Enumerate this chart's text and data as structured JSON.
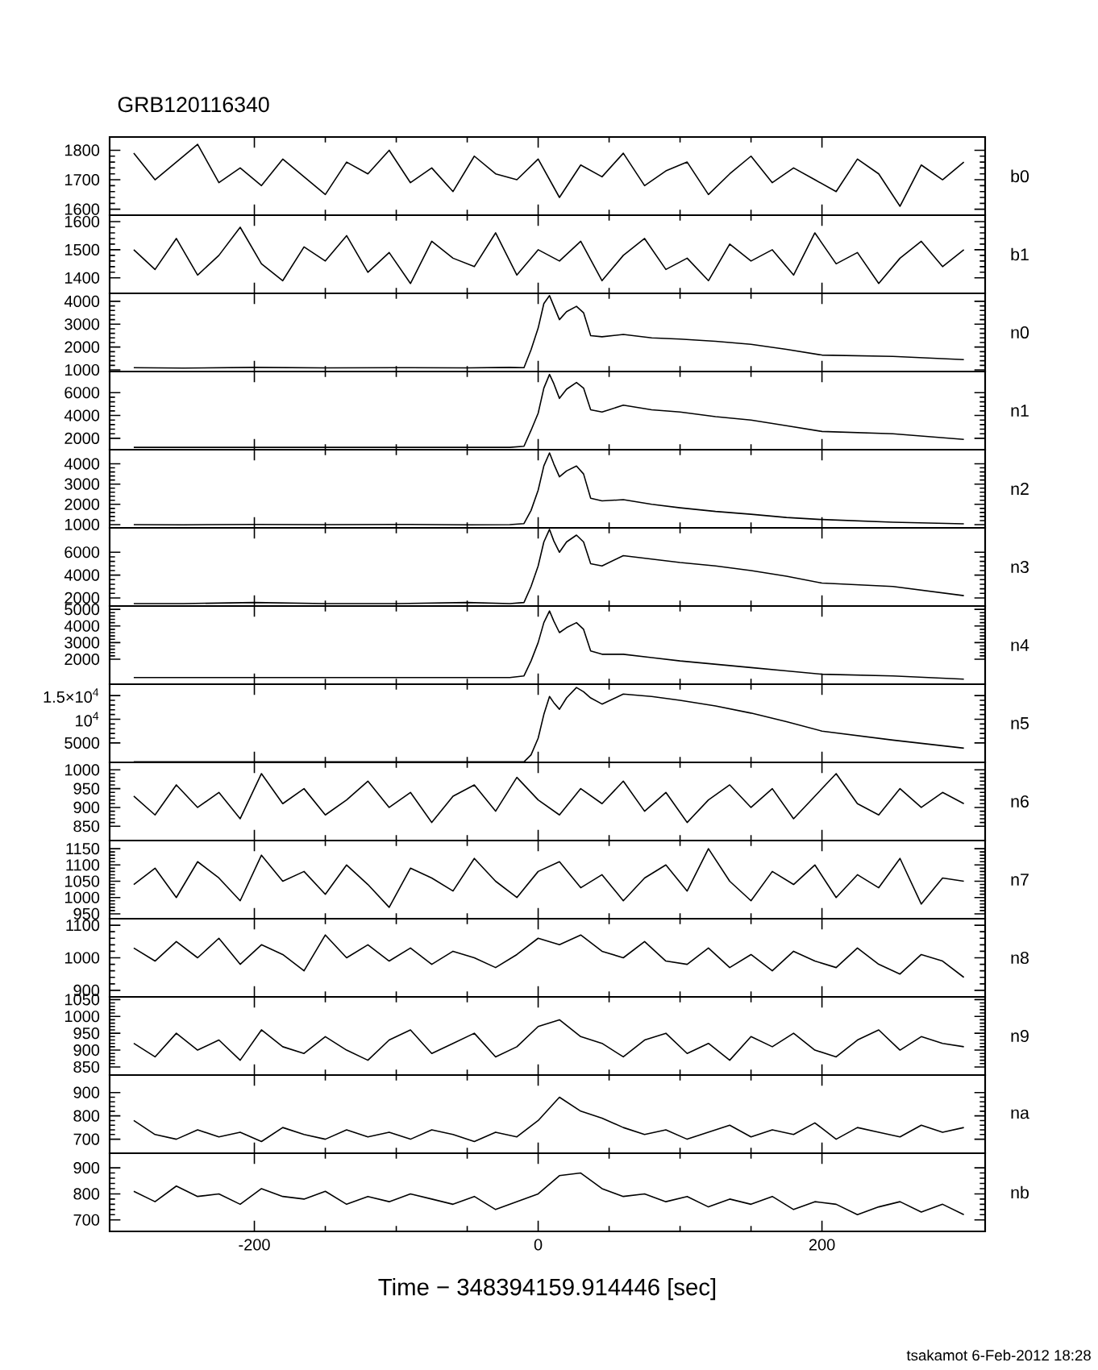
{
  "chart_data": [
    {
      "type": "line",
      "title": "GRB120116340",
      "annotations": [
        "b0"
      ],
      "color": "#000000",
      "xlim": [
        -302,
        315
      ],
      "xticks": [
        -200,
        0,
        200
      ],
      "tick_labels": "y",
      "ylim": [
        1580,
        1845
      ],
      "yticks": [
        1600,
        1700,
        1800
      ],
      "x": [
        -285,
        -270,
        -255,
        -240,
        -225,
        -210,
        -195,
        -180,
        -165,
        -150,
        -135,
        -120,
        -105,
        -90,
        -75,
        -60,
        -45,
        -30,
        -15,
        0,
        15,
        30,
        45,
        60,
        75,
        90,
        105,
        120,
        135,
        150,
        165,
        180,
        195,
        210,
        225,
        240,
        255,
        270,
        285,
        300
      ],
      "values": [
        1790,
        1700,
        1760,
        1820,
        1690,
        1740,
        1680,
        1770,
        1710,
        1650,
        1760,
        1720,
        1800,
        1690,
        1740,
        1660,
        1780,
        1720,
        1700,
        1770,
        1640,
        1750,
        1710,
        1790,
        1680,
        1730,
        1760,
        1650,
        1720,
        1780,
        1690,
        1740,
        1700,
        1660,
        1770,
        1720,
        1610,
        1750,
        1700,
        1760
      ]
    },
    {
      "type": "line",
      "annotations": [
        "b1"
      ],
      "color": "#000000",
      "xlim": [
        -302,
        315
      ],
      "xticks": [
        -200,
        0,
        200
      ],
      "tick_labels": "y",
      "ylim": [
        1345,
        1623
      ],
      "yticks": [
        1400,
        1500,
        1600
      ],
      "x": [
        -285,
        -270,
        -255,
        -240,
        -225,
        -210,
        -195,
        -180,
        -165,
        -150,
        -135,
        -120,
        -105,
        -90,
        -75,
        -60,
        -45,
        -30,
        -15,
        0,
        15,
        30,
        45,
        60,
        75,
        90,
        105,
        120,
        135,
        150,
        165,
        180,
        195,
        210,
        225,
        240,
        255,
        270,
        285,
        300
      ],
      "values": [
        1500,
        1430,
        1540,
        1410,
        1480,
        1580,
        1450,
        1390,
        1510,
        1460,
        1550,
        1420,
        1490,
        1380,
        1530,
        1470,
        1440,
        1560,
        1410,
        1500,
        1460,
        1530,
        1390,
        1480,
        1540,
        1430,
        1470,
        1390,
        1520,
        1460,
        1500,
        1410,
        1560,
        1450,
        1490,
        1380,
        1470,
        1530,
        1440,
        1500
      ]
    },
    {
      "type": "line",
      "annotations": [
        "n0"
      ],
      "color": "#000000",
      "xlim": [
        -302,
        315
      ],
      "xticks": [
        -200,
        0,
        200
      ],
      "tick_labels": "y",
      "ylim": [
        930,
        4350
      ],
      "yticks": [
        1000,
        2000,
        3000,
        4000
      ],
      "x": [
        -285,
        -250,
        -200,
        -150,
        -100,
        -50,
        -20,
        -10,
        -5,
        0,
        4,
        8,
        11,
        15,
        20,
        27,
        32,
        37,
        45,
        60,
        80,
        100,
        125,
        150,
        175,
        200,
        250,
        300
      ],
      "values": [
        1100,
        1080,
        1110,
        1090,
        1100,
        1090,
        1110,
        1100,
        1880,
        2830,
        3900,
        4250,
        3800,
        3200,
        3550,
        3780,
        3500,
        2500,
        2450,
        2550,
        2400,
        2350,
        2250,
        2120,
        1900,
        1650,
        1590,
        1450
      ]
    },
    {
      "type": "line",
      "annotations": [
        "n1"
      ],
      "color": "#000000",
      "xlim": [
        -302,
        315
      ],
      "xticks": [
        -200,
        0,
        200
      ],
      "tick_labels": "y",
      "ylim": [
        1000,
        7860
      ],
      "yticks": [
        2000,
        4000,
        6000
      ],
      "x": [
        -285,
        -250,
        -200,
        -150,
        -100,
        -50,
        -20,
        -10,
        -5,
        0,
        4,
        8,
        11,
        15,
        20,
        27,
        32,
        37,
        45,
        60,
        80,
        100,
        125,
        150,
        175,
        200,
        250,
        300
      ],
      "values": [
        1200,
        1200,
        1200,
        1200,
        1200,
        1200,
        1200,
        1300,
        2700,
        4200,
        6400,
        7600,
        6800,
        5500,
        6300,
        6900,
        6400,
        4500,
        4300,
        4900,
        4500,
        4300,
        3900,
        3600,
        3100,
        2600,
        2400,
        1900
      ]
    },
    {
      "type": "line",
      "annotations": [
        "n2"
      ],
      "color": "#000000",
      "xlim": [
        -302,
        315
      ],
      "xticks": [
        -200,
        0,
        200
      ],
      "tick_labels": "y",
      "ylim": [
        840,
        4700
      ],
      "yticks": [
        1000,
        2000,
        3000,
        4000
      ],
      "x": [
        -285,
        -250,
        -200,
        -150,
        -100,
        -50,
        -20,
        -10,
        -5,
        0,
        4,
        8,
        11,
        15,
        20,
        27,
        32,
        37,
        45,
        60,
        80,
        100,
        125,
        150,
        175,
        200,
        250,
        300
      ],
      "values": [
        1000,
        990,
        1010,
        1000,
        1010,
        990,
        1000,
        1050,
        1700,
        2700,
        3900,
        4540,
        4000,
        3360,
        3650,
        3890,
        3500,
        2300,
        2170,
        2230,
        2000,
        1830,
        1650,
        1510,
        1350,
        1250,
        1120,
        1040
      ]
    },
    {
      "type": "line",
      "annotations": [
        "n3"
      ],
      "color": "#000000",
      "xlim": [
        -302,
        315
      ],
      "xticks": [
        -200,
        0,
        200
      ],
      "tick_labels": "y",
      "ylim": [
        1290,
        8140
      ],
      "yticks": [
        2000,
        4000,
        6000
      ],
      "x": [
        -285,
        -250,
        -200,
        -150,
        -100,
        -50,
        -20,
        -10,
        -5,
        0,
        4,
        8,
        11,
        15,
        20,
        27,
        32,
        37,
        45,
        60,
        80,
        100,
        125,
        150,
        175,
        200,
        250,
        300
      ],
      "values": [
        1500,
        1500,
        1600,
        1500,
        1500,
        1600,
        1500,
        1600,
        3000,
        4800,
        6900,
        8000,
        7000,
        6000,
        6900,
        7500,
        6900,
        5000,
        4800,
        5700,
        5400,
        5100,
        4800,
        4400,
        3900,
        3300,
        3000,
        2200
      ]
    },
    {
      "type": "line",
      "annotations": [
        "n4"
      ],
      "color": "#000000",
      "xlim": [
        -302,
        315
      ],
      "xticks": [
        -200,
        0,
        200
      ],
      "tick_labels": "y",
      "ylim": [
        500,
        5200
      ],
      "yticks": [
        2000,
        3000,
        4000,
        5000
      ],
      "x": [
        -285,
        -250,
        -200,
        -150,
        -100,
        -50,
        -20,
        -10,
        -5,
        0,
        4,
        8,
        11,
        15,
        20,
        27,
        32,
        37,
        45,
        60,
        80,
        100,
        125,
        150,
        175,
        200,
        250,
        300
      ],
      "values": [
        900,
        900,
        900,
        900,
        900,
        900,
        900,
        1000,
        1900,
        3000,
        4200,
        4900,
        4300,
        3600,
        3900,
        4200,
        3800,
        2500,
        2300,
        2300,
        2100,
        1900,
        1700,
        1500,
        1300,
        1100,
        1000,
        800
      ]
    },
    {
      "type": "line",
      "annotations": [
        "n5"
      ],
      "color": "#000000",
      "xlim": [
        -302,
        315
      ],
      "xticks": [
        -200,
        0,
        200
      ],
      "tick_labels": "y",
      "ylim": [
        900,
        17400
      ],
      "yticks": [
        5000,
        {
          "value": 10000,
          "label": "10$^{4}$"
        },
        {
          "value": 15000,
          "label": "1.5×10$^{4}$"
        }
      ],
      "x": [
        -285,
        -250,
        -200,
        -150,
        -100,
        -50,
        -20,
        -10,
        -5,
        0,
        4,
        8,
        11,
        15,
        20,
        27,
        32,
        37,
        45,
        60,
        80,
        100,
        125,
        150,
        175,
        200,
        250,
        300
      ],
      "values": [
        1000,
        1000,
        1000,
        1000,
        1000,
        1000,
        1000,
        1000,
        2500,
        6000,
        11000,
        14800,
        13500,
        12100,
        14500,
        16700,
        15800,
        14500,
        13200,
        15300,
        14800,
        14000,
        12800,
        11300,
        9500,
        7500,
        5600,
        3900
      ]
    },
    {
      "type": "line",
      "annotations": [
        "n6"
      ],
      "color": "#000000",
      "xlim": [
        -302,
        315
      ],
      "xticks": [
        -200,
        0,
        200
      ],
      "tick_labels": "y",
      "ylim": [
        812,
        1020
      ],
      "yticks": [
        850,
        900,
        950,
        1000
      ],
      "x": [
        -285,
        -270,
        -255,
        -240,
        -225,
        -210,
        -195,
        -180,
        -165,
        -150,
        -135,
        -120,
        -105,
        -90,
        -75,
        -60,
        -45,
        -30,
        -15,
        0,
        15,
        30,
        45,
        60,
        75,
        90,
        105,
        120,
        135,
        150,
        165,
        180,
        195,
        210,
        225,
        240,
        255,
        270,
        285,
        300
      ],
      "values": [
        930,
        880,
        960,
        900,
        940,
        870,
        990,
        910,
        950,
        880,
        920,
        970,
        900,
        940,
        860,
        930,
        960,
        890,
        980,
        920,
        880,
        950,
        910,
        970,
        890,
        940,
        860,
        920,
        960,
        900,
        950,
        870,
        930,
        990,
        910,
        880,
        950,
        900,
        940,
        910
      ]
    },
    {
      "type": "line",
      "annotations": [
        "n7"
      ],
      "color": "#000000",
      "xlim": [
        -302,
        315
      ],
      "xticks": [
        -200,
        0,
        200
      ],
      "tick_labels": "y",
      "ylim": [
        935,
        1175
      ],
      "yticks": [
        950,
        1000,
        1050,
        1100,
        1150
      ],
      "x": [
        -285,
        -270,
        -255,
        -240,
        -225,
        -210,
        -195,
        -180,
        -165,
        -150,
        -135,
        -120,
        -105,
        -90,
        -75,
        -60,
        -45,
        -30,
        -15,
        0,
        15,
        30,
        45,
        60,
        75,
        90,
        105,
        120,
        135,
        150,
        165,
        180,
        195,
        210,
        225,
        240,
        255,
        270,
        285,
        300
      ],
      "values": [
        1040,
        1090,
        1000,
        1110,
        1060,
        990,
        1130,
        1050,
        1080,
        1010,
        1100,
        1040,
        970,
        1090,
        1060,
        1020,
        1120,
        1050,
        1000,
        1080,
        1110,
        1030,
        1070,
        990,
        1060,
        1100,
        1020,
        1150,
        1050,
        990,
        1080,
        1040,
        1100,
        1000,
        1070,
        1030,
        1120,
        980,
        1060,
        1050
      ]
    },
    {
      "type": "line",
      "annotations": [
        "n8"
      ],
      "color": "#000000",
      "xlim": [
        -302,
        315
      ],
      "xticks": [
        -200,
        0,
        200
      ],
      "tick_labels": "y",
      "ylim": [
        880,
        1120
      ],
      "yticks": [
        900,
        1000,
        1100
      ],
      "x": [
        -285,
        -270,
        -255,
        -240,
        -225,
        -210,
        -195,
        -180,
        -165,
        -150,
        -135,
        -120,
        -105,
        -90,
        -75,
        -60,
        -45,
        -30,
        -15,
        0,
        15,
        30,
        45,
        60,
        75,
        90,
        105,
        120,
        135,
        150,
        165,
        180,
        195,
        210,
        225,
        240,
        255,
        270,
        285,
        300
      ],
      "values": [
        1030,
        990,
        1050,
        1000,
        1060,
        980,
        1040,
        1010,
        960,
        1070,
        1000,
        1040,
        990,
        1030,
        980,
        1020,
        1000,
        970,
        1010,
        1060,
        1040,
        1070,
        1020,
        1000,
        1050,
        990,
        980,
        1030,
        970,
        1010,
        960,
        1020,
        990,
        970,
        1030,
        980,
        950,
        1010,
        990,
        940
      ]
    },
    {
      "type": "line",
      "annotations": [
        "n9"
      ],
      "color": "#000000",
      "xlim": [
        -302,
        315
      ],
      "xticks": [
        -200,
        0,
        200
      ],
      "tick_labels": "y",
      "ylim": [
        826,
        1058
      ],
      "yticks": [
        850,
        900,
        950,
        1000,
        1050
      ],
      "x": [
        -285,
        -270,
        -255,
        -240,
        -225,
        -210,
        -195,
        -180,
        -165,
        -150,
        -135,
        -120,
        -105,
        -90,
        -75,
        -60,
        -45,
        -30,
        -15,
        0,
        15,
        30,
        45,
        60,
        75,
        90,
        105,
        120,
        135,
        150,
        165,
        180,
        195,
        210,
        225,
        240,
        255,
        270,
        285,
        300
      ],
      "values": [
        920,
        880,
        950,
        900,
        930,
        870,
        960,
        910,
        890,
        940,
        900,
        870,
        930,
        960,
        890,
        920,
        950,
        880,
        910,
        970,
        990,
        940,
        920,
        880,
        930,
        950,
        890,
        920,
        870,
        940,
        910,
        950,
        900,
        880,
        930,
        960,
        900,
        940,
        920,
        910
      ]
    },
    {
      "type": "line",
      "annotations": [
        "na"
      ],
      "color": "#000000",
      "xlim": [
        -302,
        315
      ],
      "xticks": [
        -200,
        0,
        200
      ],
      "tick_labels": "y",
      "ylim": [
        640,
        975
      ],
      "yticks": [
        700,
        800,
        900
      ],
      "x": [
        -285,
        -270,
        -255,
        -240,
        -225,
        -210,
        -195,
        -180,
        -165,
        -150,
        -135,
        -120,
        -105,
        -90,
        -75,
        -60,
        -45,
        -30,
        -15,
        0,
        15,
        30,
        45,
        60,
        75,
        90,
        105,
        120,
        135,
        150,
        165,
        180,
        195,
        210,
        225,
        240,
        255,
        270,
        285,
        300
      ],
      "values": [
        780,
        720,
        700,
        740,
        710,
        730,
        690,
        750,
        720,
        700,
        740,
        710,
        730,
        700,
        740,
        720,
        690,
        730,
        710,
        780,
        880,
        820,
        790,
        750,
        720,
        740,
        700,
        730,
        760,
        710,
        740,
        720,
        770,
        700,
        750,
        730,
        710,
        760,
        730,
        750
      ]
    },
    {
      "type": "line",
      "xlabel": "Time − 348394159.914446 [sec]",
      "annotations": [
        "nb",
        "tsakamot  6-Feb-2012 18:28"
      ],
      "color": "#000000",
      "xlim": [
        -302,
        315
      ],
      "xticks": [
        -200,
        0,
        200
      ],
      "ylim": [
        656,
        956
      ],
      "yticks": [
        700,
        800,
        900
      ],
      "x": [
        -285,
        -270,
        -255,
        -240,
        -225,
        -210,
        -195,
        -180,
        -165,
        -150,
        -135,
        -120,
        -105,
        -90,
        -75,
        -60,
        -45,
        -30,
        -15,
        0,
        15,
        30,
        45,
        60,
        75,
        90,
        105,
        120,
        135,
        150,
        165,
        180,
        195,
        210,
        225,
        240,
        255,
        270,
        285,
        300
      ],
      "values": [
        810,
        770,
        830,
        790,
        800,
        760,
        820,
        790,
        780,
        810,
        760,
        790,
        770,
        800,
        780,
        760,
        790,
        740,
        770,
        800,
        870,
        880,
        820,
        790,
        800,
        770,
        790,
        750,
        780,
        760,
        790,
        740,
        770,
        760,
        720,
        750,
        770,
        730,
        760,
        720
      ]
    }
  ]
}
